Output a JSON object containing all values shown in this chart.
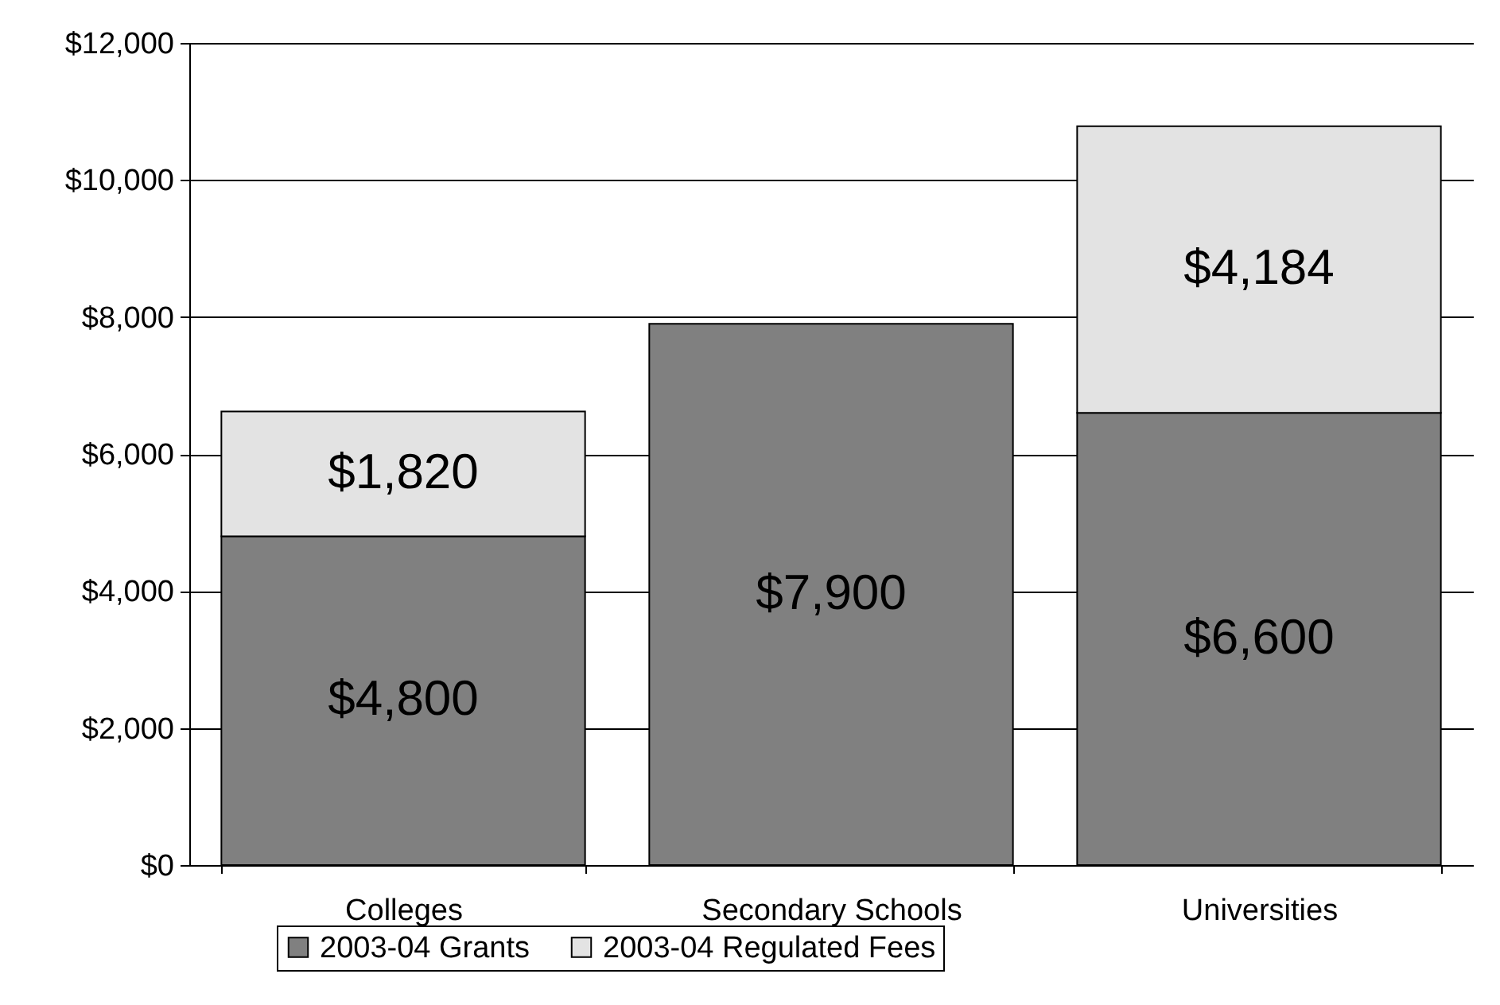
{
  "chart_data": {
    "type": "bar",
    "stacked": true,
    "categories": [
      "Colleges",
      "Secondary Schools",
      "Universities"
    ],
    "series": [
      {
        "name": "2003-04 Grants",
        "color": "#808080",
        "values": [
          4800,
          7900,
          6600
        ],
        "value_labels": [
          "$4,800",
          "$7,900",
          "$6,600"
        ]
      },
      {
        "name": "2003-04 Regulated Fees",
        "color": "#e3e3e3",
        "values": [
          1820,
          null,
          4184
        ],
        "value_labels": [
          "$1,820",
          null,
          "$4,184"
        ]
      }
    ],
    "ylim": [
      0,
      12000
    ],
    "yticks": [
      {
        "value": 0,
        "label": "$0"
      },
      {
        "value": 2000,
        "label": "$2,000"
      },
      {
        "value": 4000,
        "label": "$4,000"
      },
      {
        "value": 6000,
        "label": "$6,000"
      },
      {
        "value": 8000,
        "label": "$8,000"
      },
      {
        "value": 10000,
        "label": "$10,000"
      },
      {
        "value": 12000,
        "label": "$12,000"
      }
    ],
    "grid": "y",
    "legend": "bottom"
  }
}
